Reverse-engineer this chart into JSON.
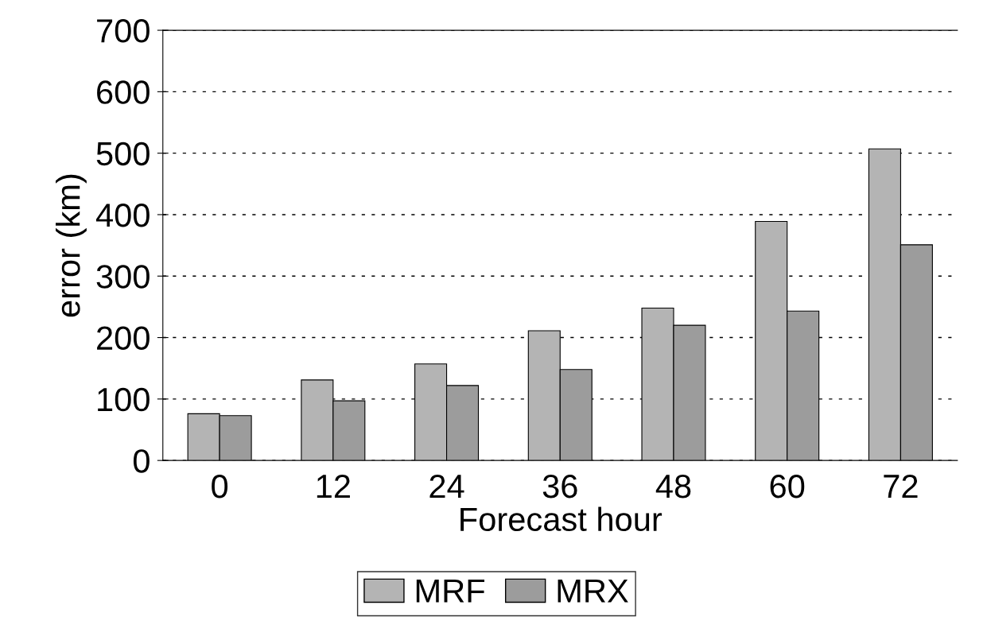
{
  "chart_data": {
    "type": "bar",
    "xlabel": "Forecast hour",
    "ylabel": "error (km)",
    "categories": [
      "0",
      "12",
      "24",
      "36",
      "48",
      "60",
      "72"
    ],
    "series": [
      {
        "name": "MRF",
        "color": "#b4b4b4",
        "values": [
          76,
          131,
          157,
          211,
          248,
          389,
          507
        ]
      },
      {
        "name": "MRX",
        "color": "#9c9c9c",
        "values": [
          73,
          97,
          122,
          148,
          220,
          243,
          351
        ]
      }
    ],
    "ylim": [
      0,
      700
    ],
    "yticks": [
      0,
      100,
      200,
      300,
      400,
      500,
      600,
      700
    ],
    "grid": "y",
    "legend": "bottom"
  }
}
